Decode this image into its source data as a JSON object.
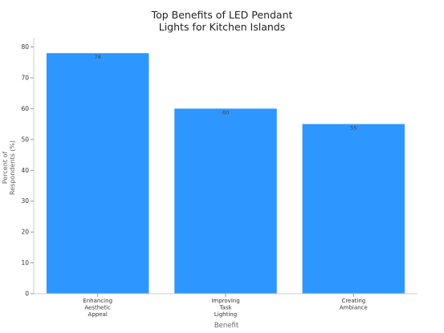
{
  "chart_data": {
    "type": "bar",
    "title_lines": [
      "Top Benefits of LED Pendant",
      "Lights for Kitchen Islands"
    ],
    "xlabel": "Benefit",
    "ylabel_lines": [
      "Percent of",
      "Respondents (%)"
    ],
    "categories": [
      [
        "Enhancing",
        "Aesthetic",
        "Appeal"
      ],
      [
        "Improving",
        "Task",
        "Lighting"
      ],
      [
        "Creating",
        "Ambiance"
      ]
    ],
    "values": [
      78,
      60,
      55
    ],
    "data_labels": [
      "78",
      "60",
      "55"
    ],
    "ylim": [
      0,
      83
    ],
    "yticks": [
      0,
      10,
      20,
      30,
      40,
      50,
      60,
      70,
      80
    ],
    "bar_color": "#2d96ff",
    "grid": false,
    "legend": "none"
  }
}
